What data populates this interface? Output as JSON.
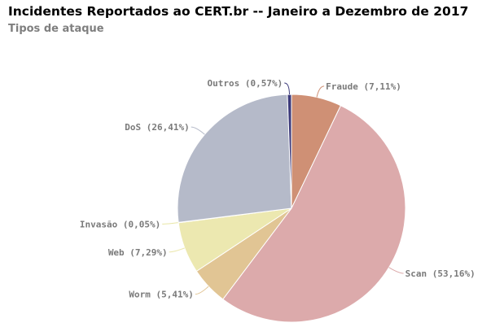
{
  "chart_data": {
    "type": "pie",
    "title": "Incidentes Reportados ao CERT.br -- Janeiro a Dezembro de 2017",
    "subtitle": "Tipos de ataque",
    "slices": [
      {
        "label": "Fraude (7,11%)",
        "value": 7.11,
        "color": "#cf9075"
      },
      {
        "label": "Scan (53,16%)",
        "value": 53.16,
        "color": "#dcaaab"
      },
      {
        "label": "Worm (5,41%)",
        "value": 5.41,
        "color": "#e1c594"
      },
      {
        "label": "Web (7,29%)",
        "value": 7.29,
        "color": "#ece8b0"
      },
      {
        "label": "Invasão (0,05%)",
        "value": 0.05,
        "color": "#e8e6a6"
      },
      {
        "label": "DoS (26,41%)",
        "value": 26.41,
        "color": "#b5bac9"
      },
      {
        "label": "Outros (0,57%)",
        "value": 0.57,
        "color": "#3c3a7a"
      }
    ]
  }
}
